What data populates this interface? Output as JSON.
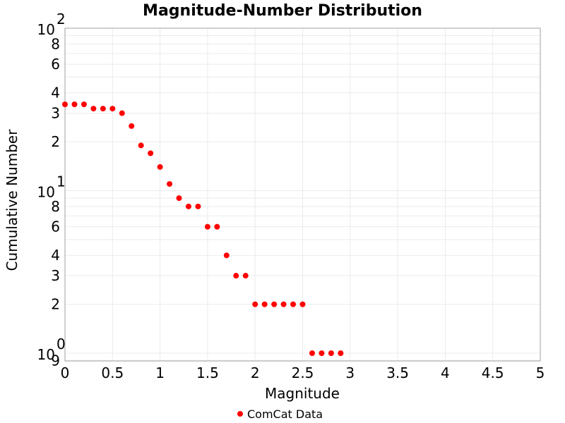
{
  "chart_data": {
    "type": "scatter",
    "title": "Magnitude-Number Distribution",
    "xlabel": "Magnitude",
    "ylabel": "Cumulative Number",
    "xlim": [
      0,
      5
    ],
    "ylim": [
      0.9,
      100
    ],
    "yscale": "log",
    "grid": true,
    "legend_position": "bottom",
    "x_ticks": [
      "0",
      "0.5",
      "1",
      "1.5",
      "2",
      "2.5",
      "3",
      "3.5",
      "4",
      "4.5",
      "5"
    ],
    "y_ticks": [
      {
        "value": 100,
        "base": "10",
        "exp": "2"
      },
      {
        "value": 80,
        "label": "8"
      },
      {
        "value": 60,
        "label": "6"
      },
      {
        "value": 40,
        "label": "4"
      },
      {
        "value": 30,
        "label": "3"
      },
      {
        "value": 20,
        "label": "2"
      },
      {
        "value": 10,
        "base": "10",
        "exp": "1"
      },
      {
        "value": 8,
        "label": "8"
      },
      {
        "value": 6,
        "label": "6"
      },
      {
        "value": 4,
        "label": "4"
      },
      {
        "value": 3,
        "label": "3"
      },
      {
        "value": 2,
        "label": "2"
      },
      {
        "value": 1,
        "base": "10",
        "exp": "0"
      },
      {
        "value": 0.9,
        "label": "9"
      }
    ],
    "series": [
      {
        "name": "ComCat Data",
        "color": "#ff0000",
        "x": [
          0,
          0.1,
          0.2,
          0.3,
          0.4,
          0.5,
          0.6,
          0.7,
          0.8,
          0.9,
          1.0,
          1.1,
          1.2,
          1.3,
          1.4,
          1.5,
          1.6,
          1.7,
          1.8,
          1.9,
          2.0,
          2.1,
          2.2,
          2.3,
          2.4,
          2.5,
          2.6,
          2.7,
          2.8,
          2.9
        ],
        "y": [
          34,
          34,
          34,
          32,
          32,
          32,
          30,
          25,
          19,
          17,
          14,
          11,
          9,
          8,
          8,
          6,
          6,
          4,
          3,
          3,
          2,
          2,
          2,
          2,
          2,
          2,
          1,
          1,
          1,
          1
        ]
      }
    ]
  }
}
